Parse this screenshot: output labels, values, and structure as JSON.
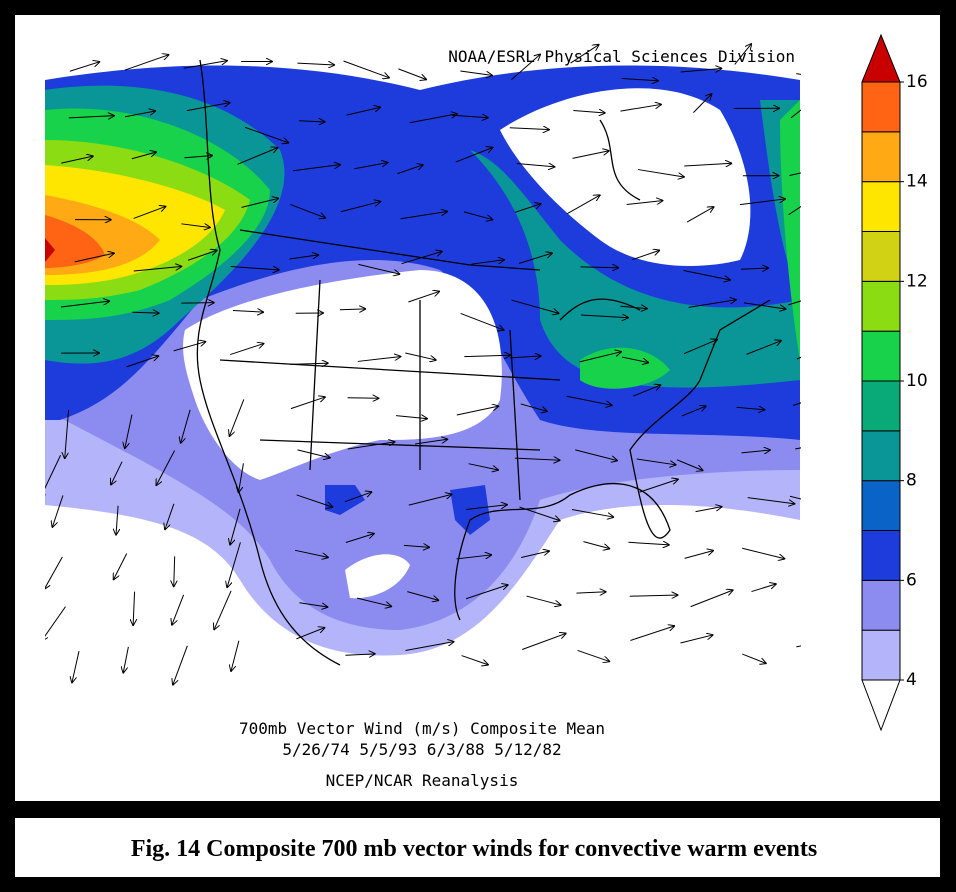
{
  "map": {
    "credit": "NOAA/ESRL Physical Sciences Division",
    "title_lines": [
      "700mb Vector Wind (m/s) Composite Mean",
      "5/26/74 5/5/93 6/3/88 5/12/82",
      "NCEP/NCAR Reanalysis"
    ],
    "colorbar": {
      "ticks": [
        4,
        6,
        8,
        10,
        12,
        14,
        16
      ],
      "colors": [
        "#b4b4fa",
        "#8c8cf0",
        "#1e3cdc",
        "#0a64c8",
        "#0a9696",
        "#0aaa78",
        "#19d24b",
        "#8cdc14",
        "#d2d214",
        "#ffe600",
        "#ffaa14",
        "#ff6414"
      ],
      "below_color": "#ffffff",
      "above_color": "#c80000"
    }
  },
  "caption": "Fig. 14 Composite 700 mb vector winds for convective warm events"
}
